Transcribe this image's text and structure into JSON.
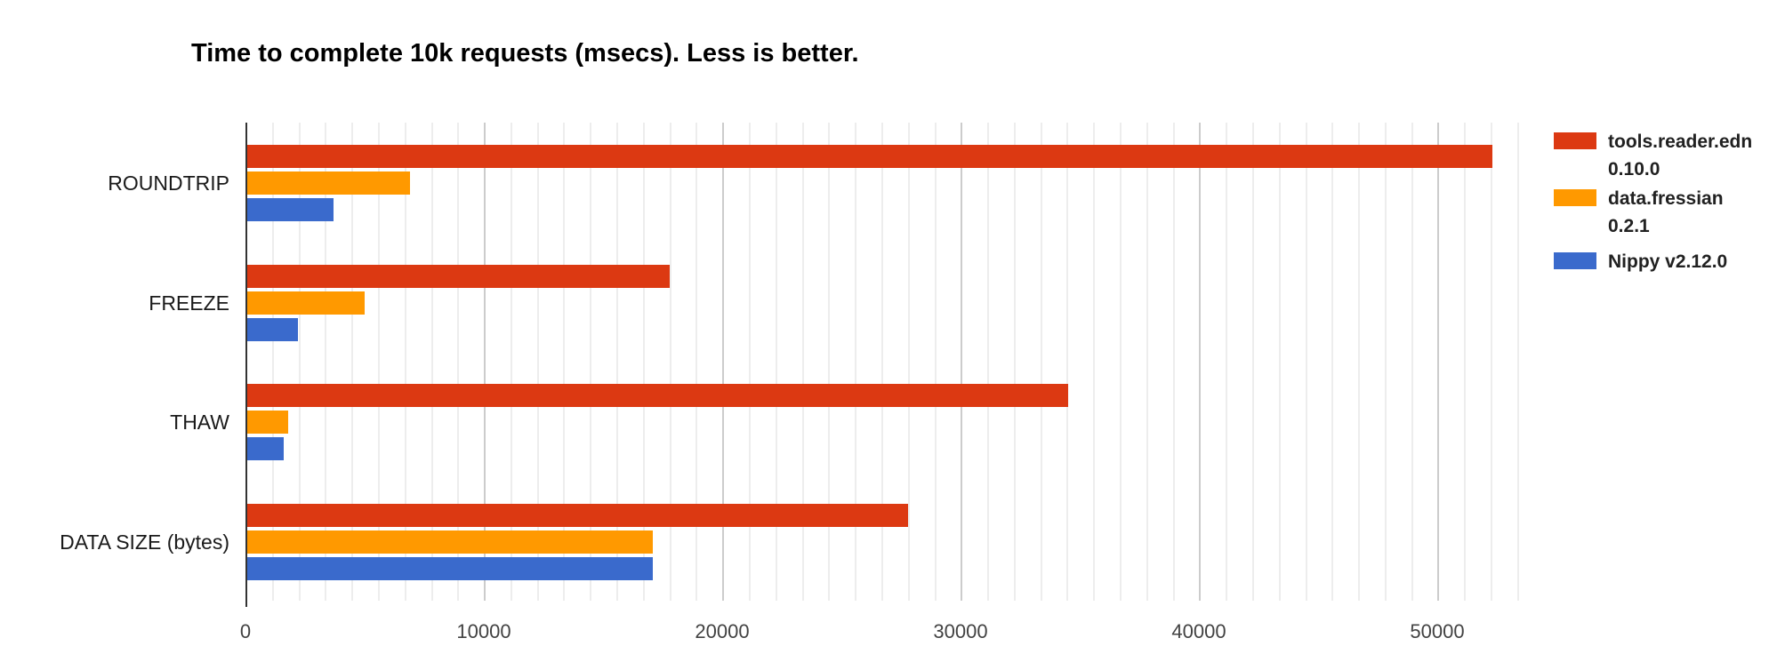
{
  "title": "Time to complete 10k requests (msecs). Less is better.",
  "colors": {
    "series_red": "#dc3912",
    "series_orange": "#ff9900",
    "series_blue": "#3a6acc",
    "axis_line": "#333333",
    "grid_major": "#cccccc",
    "grid_minor": "#ededed",
    "tick_label": "#424242",
    "category_label": "#1a1a1a",
    "background": "#ffffff"
  },
  "chart_data": {
    "type": "bar",
    "orientation": "horizontal",
    "title": "Time to complete 10k requests (msecs). Less is better.",
    "xlabel": "",
    "ylabel": "",
    "categories": [
      "ROUNDTRIP",
      "FREEZE",
      "THAW",
      "DATA SIZE (bytes)"
    ],
    "series": [
      {
        "name": "tools.reader.edn 0.10.0",
        "legend_lines": [
          "tools.reader.edn",
          "0.10.0"
        ],
        "color": "#dc3912",
        "values": [
          52300,
          17800,
          34500,
          27800
        ]
      },
      {
        "name": "data.fressian 0.2.1",
        "legend_lines": [
          "data.fressian",
          "0.2.1"
        ],
        "color": "#ff9900",
        "values": [
          6900,
          5000,
          1800,
          17100
        ]
      },
      {
        "name": "Nippy v2.12.0",
        "legend_lines": [
          "Nippy v2.12.0"
        ],
        "color": "#3a6acc",
        "values": [
          3700,
          2200,
          1600,
          17100
        ]
      }
    ],
    "x_ticks": [
      0,
      10000,
      20000,
      30000,
      40000,
      50000
    ],
    "x_tick_labels": [
      "0",
      "10000",
      "20000",
      "30000",
      "40000",
      "50000"
    ],
    "xlim": [
      0,
      53600
    ],
    "minor_grid_divisions_per_major": 9,
    "grid": true,
    "legend_position": "right"
  }
}
